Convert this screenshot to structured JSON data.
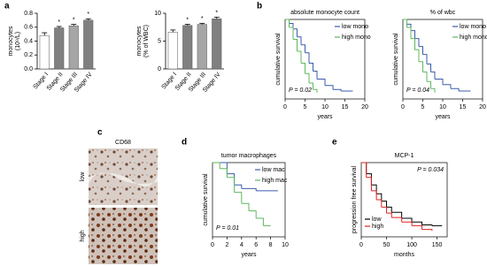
{
  "figure": {
    "panel_labels": [
      "a",
      "b",
      "c",
      "d",
      "e"
    ],
    "image": {
      "title": "CD68",
      "rows": [
        "low",
        "high"
      ]
    }
  },
  "chart_data": [
    {
      "type": "bar",
      "ylabel": [
        "monocytes",
        "(10⁹/L)"
      ],
      "categories": [
        "Stage I",
        "Stage II",
        "Stage III",
        "Stage IV"
      ],
      "values": [
        0.48,
        0.59,
        0.62,
        0.7
      ],
      "errors": [
        0.04,
        0.02,
        0.02,
        0.02
      ],
      "significance": [
        null,
        "*",
        "*",
        "*"
      ],
      "colors": [
        "#ffffff",
        "#808080",
        "#a6a6a6",
        "#808080"
      ],
      "ylim": [
        0,
        0.8
      ],
      "yticks": [
        {
          "value": 0,
          "label": "0.0"
        },
        0.2,
        0.4,
        0.6,
        0.8
      ]
    },
    {
      "type": "bar",
      "ylabel": [
        "monocytes",
        "(% of WBC)"
      ],
      "categories": [
        "Stage I",
        "Stage II",
        "Stage III",
        "Stage IV"
      ],
      "values": [
        6.6,
        7.8,
        8.0,
        9.0
      ],
      "errors": [
        0.4,
        0.2,
        0.2,
        0.3
      ],
      "significance": [
        null,
        "*",
        "*",
        "*"
      ],
      "colors": [
        "#ffffff",
        "#808080",
        "#a6a6a6",
        "#808080"
      ],
      "ylim": [
        0,
        10
      ],
      "yticks": [
        0,
        5,
        10
      ]
    },
    {
      "type": "step",
      "title": "absolute monocyte count",
      "ylabel": "cumulative survival",
      "xlabel": "years",
      "p_label": "P = 0.02",
      "legend": "upper right",
      "xlim": [
        0,
        20
      ],
      "ylim": [
        0,
        1
      ],
      "xticks": [
        0,
        5,
        10,
        15,
        20
      ],
      "series": [
        {
          "name": "low mono",
          "color": "#3b5bab",
          "x": [
            0,
            1,
            2,
            3,
            4,
            5,
            6,
            7,
            8,
            10,
            12,
            14,
            17
          ],
          "values": [
            1,
            0.95,
            0.88,
            0.78,
            0.68,
            0.58,
            0.45,
            0.35,
            0.25,
            0.17,
            0.12,
            0.1,
            0.1
          ]
        },
        {
          "name": "high mono",
          "color": "#5cb85c",
          "x": [
            0,
            1,
            2,
            3,
            4,
            5,
            6,
            7,
            8
          ],
          "values": [
            1,
            0.9,
            0.75,
            0.6,
            0.45,
            0.32,
            0.2,
            0.12,
            0.08
          ]
        }
      ]
    },
    {
      "type": "step",
      "title": "% of wbc",
      "ylabel": "cumulative survival",
      "xlabel": "years",
      "p_label": "P = 0.04",
      "legend": "upper right",
      "xlim": [
        0,
        20
      ],
      "ylim": [
        0,
        1
      ],
      "xticks": [
        0,
        5,
        10,
        15,
        20
      ],
      "series": [
        {
          "name": "low mono",
          "color": "#3b5bab",
          "x": [
            0,
            1,
            2,
            3,
            4,
            5,
            6,
            7,
            8,
            10,
            12,
            14,
            17
          ],
          "values": [
            1,
            0.94,
            0.86,
            0.76,
            0.66,
            0.56,
            0.44,
            0.34,
            0.25,
            0.18,
            0.13,
            0.1,
            0.1
          ]
        },
        {
          "name": "high mono",
          "color": "#5cb85c",
          "x": [
            0,
            1,
            2,
            3,
            4,
            5,
            6,
            7,
            8
          ],
          "values": [
            1,
            0.9,
            0.76,
            0.62,
            0.47,
            0.34,
            0.22,
            0.13,
            0.08
          ]
        }
      ]
    },
    {
      "type": "step",
      "title": "tumor macrophages",
      "ylabel": "cumulative survival",
      "xlabel": "years",
      "p_label": "P = 0.01",
      "legend": "upper right",
      "xlim": [
        0,
        10
      ],
      "ylim": [
        0,
        1
      ],
      "xticks": [
        0,
        2,
        4,
        6,
        8,
        10
      ],
      "series": [
        {
          "name": "low mac",
          "color": "#3b5bab",
          "x": [
            0,
            1,
            2,
            3,
            4,
            6,
            9
          ],
          "values": [
            1,
            1,
            0.85,
            0.7,
            0.65,
            0.62,
            0.62
          ]
        },
        {
          "name": "high mac",
          "color": "#5cb85c",
          "x": [
            0,
            1,
            2,
            3,
            4,
            5,
            6,
            7,
            8
          ],
          "values": [
            1,
            0.92,
            0.8,
            0.6,
            0.45,
            0.35,
            0.25,
            0.15,
            0.15
          ]
        }
      ]
    },
    {
      "type": "step",
      "title": "MCP-1",
      "ylabel": "progression free survival",
      "xlabel": "months",
      "p_label": "P = 0.034",
      "legend": "lower left",
      "xlim": [
        0,
        170
      ],
      "ylim": [
        0,
        1
      ],
      "xticks": [
        0,
        50,
        100,
        150
      ],
      "series": [
        {
          "name": "low",
          "color": "#000000",
          "x": [
            0,
            10,
            20,
            30,
            40,
            50,
            60,
            80,
            100,
            120,
            140,
            160
          ],
          "values": [
            1,
            0.85,
            0.7,
            0.58,
            0.48,
            0.4,
            0.33,
            0.25,
            0.2,
            0.16,
            0.15,
            0.15
          ]
        },
        {
          "name": "high",
          "color": "#e02020",
          "x": [
            0,
            10,
            20,
            30,
            40,
            50,
            60,
            80,
            100,
            120,
            140
          ],
          "values": [
            1,
            0.8,
            0.62,
            0.5,
            0.4,
            0.32,
            0.26,
            0.2,
            0.15,
            0.1,
            0.08
          ]
        }
      ]
    }
  ]
}
